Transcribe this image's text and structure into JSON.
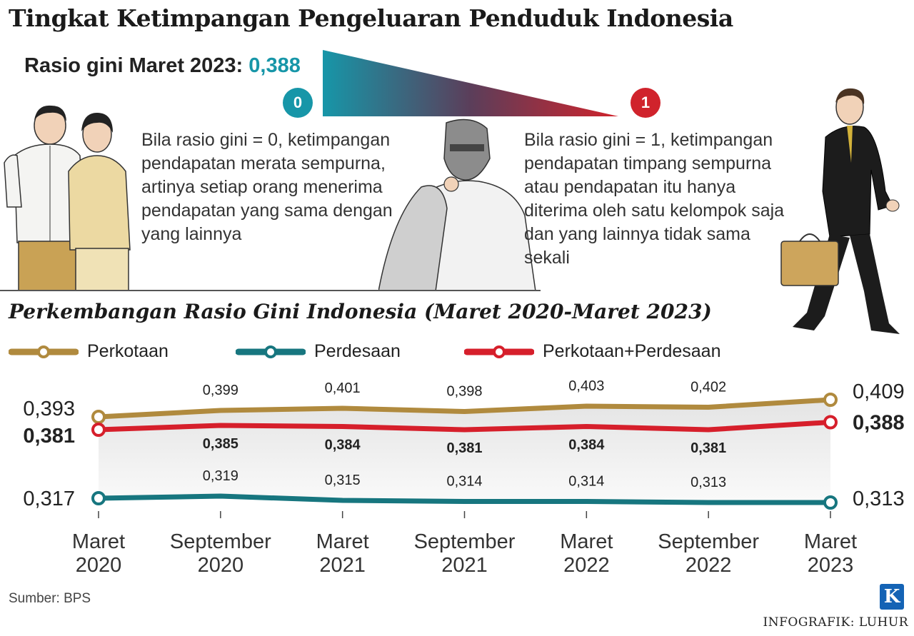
{
  "title": "Tingkat Ketimpangan Pengeluaran Penduduk Indonesia",
  "gini_header": {
    "label": "Rasio gini Maret 2023: ",
    "value": "0,388"
  },
  "scale": {
    "low": "0",
    "high": "1"
  },
  "desc_zero": "Bila rasio gini = 0, ketimpangan pendapatan merata sempurna, artinya setiap orang menerima pendapatan yang sama dengan yang lainnya",
  "desc_one": "Bila rasio gini = 1, ketimpangan pendapatan timpang sempurna atau pendapatan itu hanya diterima oleh satu kelompok saja dan yang lainnya tidak sama sekali",
  "subtitle": "Perkembangan Rasio Gini Indonesia (Maret 2020-Maret 2023)",
  "source": "Sumber: BPS",
  "credit": "INFOGRAFIK: LUHUR",
  "logo": "K",
  "colors": {
    "perkotaan": "#b08a3e",
    "perdesaan": "#17767f",
    "total": "#d61f2b",
    "teal": "#1796a8",
    "red": "#d0232c"
  },
  "chart_data": {
    "type": "line",
    "categories": [
      "Maret\n2020",
      "September\n2020",
      "Maret\n2021",
      "September\n2021",
      "Maret\n2022",
      "September\n2022",
      "Maret\n2023"
    ],
    "series": [
      {
        "name": "Perkotaan",
        "values": [
          0.393,
          0.399,
          0.401,
          0.398,
          0.403,
          0.402,
          0.409
        ],
        "labels": [
          "0,393",
          "0,399",
          "0,401",
          "0,398",
          "0,403",
          "0,402",
          "0,409"
        ]
      },
      {
        "name": "Perdesaan",
        "values": [
          0.317,
          0.319,
          0.315,
          0.314,
          0.314,
          0.313,
          0.313
        ],
        "labels": [
          "0,317",
          "0,319",
          "0,315",
          "0,314",
          "0,314",
          "0,313",
          "0,313"
        ]
      },
      {
        "name": "Perkotaan+Perdesaan",
        "values": [
          0.381,
          0.385,
          0.384,
          0.381,
          0.384,
          0.381,
          0.388
        ],
        "labels": [
          "0,381",
          "0,385",
          "0,384",
          "0,381",
          "0,384",
          "0,381",
          "0,388"
        ]
      }
    ],
    "title": "Perkembangan Rasio Gini Indonesia (Maret 2020-Maret 2023)",
    "xlabel": "",
    "ylabel": "",
    "legend": "top-left",
    "grid": false
  }
}
